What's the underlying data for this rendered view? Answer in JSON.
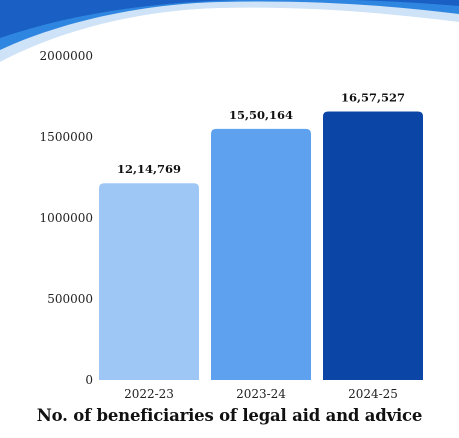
{
  "chart_data": {
    "type": "bar",
    "title": "No. of beneficiaries of legal aid and advice",
    "categories": [
      "2022-23",
      "2023-24",
      "2024-25"
    ],
    "values": [
      1214769,
      1550164,
      1657527
    ],
    "data_labels": [
      "12,14,769",
      "15,50,164",
      "16,57,527"
    ],
    "colors": [
      "#9fc7f5",
      "#5ea2ef",
      "#0b46a6"
    ],
    "ylim": [
      0,
      2000000
    ],
    "yticks": [
      0,
      500000,
      1000000,
      1500000,
      2000000
    ],
    "ytick_labels": [
      "0",
      "500000",
      "1000000",
      "1500000",
      "2000000"
    ],
    "xlabel": "",
    "ylabel": "",
    "grid": false,
    "legend": "none"
  },
  "decoration": {
    "wave_colors": [
      "#1a5fc4",
      "#2f86e0",
      "#cfe3f8"
    ]
  }
}
